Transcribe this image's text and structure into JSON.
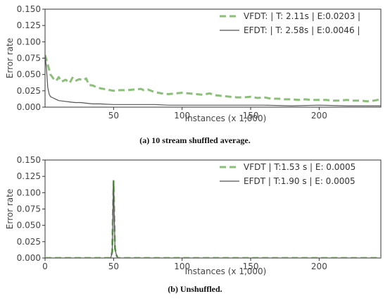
{
  "chart_data": [
    {
      "type": "line",
      "caption": "(a)  10 stream shuffled average.",
      "xlabel": "Instances (x 1,000)",
      "ylabel": "Error rate",
      "xlim": [
        0,
        245
      ],
      "ylim": [
        0,
        0.15
      ],
      "xticks": [
        50,
        100,
        150,
        200
      ],
      "xtick_labels": [
        "50",
        "100",
        "150",
        "200"
      ],
      "yticks": [
        0,
        0.025,
        0.05,
        0.075,
        0.1,
        0.125,
        0.15
      ],
      "ytick_labels": [
        "0.000",
        "0.025",
        "0.050",
        "0.075",
        "0.100",
        "0.125",
        "0.150"
      ],
      "legend_position": "top-right",
      "series": [
        {
          "name": "VFDT: | T: 2.11s |  E:0.0203 |",
          "style": "dashed",
          "color": "#8cc07a",
          "x": [
            0,
            2,
            4,
            6,
            8,
            10,
            12,
            15,
            18,
            20,
            22,
            25,
            28,
            30,
            32,
            35,
            38,
            40,
            45,
            50,
            55,
            60,
            65,
            70,
            72,
            75,
            80,
            85,
            90,
            95,
            100,
            105,
            110,
            115,
            120,
            125,
            130,
            135,
            140,
            145,
            150,
            155,
            160,
            165,
            170,
            175,
            180,
            185,
            190,
            195,
            200,
            205,
            210,
            215,
            220,
            225,
            230,
            235,
            240,
            245
          ],
          "y": [
            0.08,
            0.065,
            0.05,
            0.044,
            0.04,
            0.046,
            0.039,
            0.042,
            0.037,
            0.045,
            0.04,
            0.043,
            0.041,
            0.044,
            0.034,
            0.033,
            0.03,
            0.029,
            0.027,
            0.025,
            0.026,
            0.026,
            0.027,
            0.028,
            0.026,
            0.027,
            0.023,
            0.021,
            0.02,
            0.021,
            0.022,
            0.021,
            0.02,
            0.019,
            0.021,
            0.018,
            0.017,
            0.016,
            0.015,
            0.015,
            0.016,
            0.014,
            0.015,
            0.013,
            0.013,
            0.012,
            0.012,
            0.011,
            0.012,
            0.011,
            0.011,
            0.011,
            0.01,
            0.01,
            0.011,
            0.01,
            0.01,
            0.009,
            0.01,
            0.012
          ]
        },
        {
          "name": "EFDT: | T: 2.58s |  E:0.0046 |",
          "style": "solid",
          "color": "#555555",
          "x": [
            0,
            1,
            2,
            3,
            4,
            6,
            8,
            10,
            14,
            18,
            22,
            26,
            30,
            35,
            40,
            50,
            60,
            70,
            80,
            90,
            100,
            120,
            140,
            160,
            180,
            200,
            220,
            245
          ],
          "y": [
            0.08,
            0.06,
            0.03,
            0.02,
            0.016,
            0.014,
            0.012,
            0.01,
            0.009,
            0.008,
            0.007,
            0.007,
            0.006,
            0.005,
            0.005,
            0.004,
            0.004,
            0.004,
            0.004,
            0.003,
            0.003,
            0.003,
            0.003,
            0.003,
            0.002,
            0.003,
            0.002,
            0.002
          ]
        }
      ]
    },
    {
      "type": "line",
      "caption": "(b) Unshuffled.",
      "xlabel": "Instances (x 1,000)",
      "ylabel": "Error rate",
      "xlim": [
        0,
        245
      ],
      "ylim": [
        0,
        0.15
      ],
      "xticks": [
        0,
        50,
        100,
        150,
        200
      ],
      "xtick_labels": [
        "0",
        "50",
        "100",
        "150",
        "200"
      ],
      "yticks": [
        0,
        0.025,
        0.05,
        0.075,
        0.1,
        0.125,
        0.15
      ],
      "ytick_labels": [
        "0.000",
        "0.025",
        "0.050",
        "0.075",
        "0.100",
        "0.125",
        "0.150"
      ],
      "legend_position": "top-right",
      "series": [
        {
          "name": "VFDT | T:1.53 s | E: 0.0005",
          "style": "dashed",
          "color": "#8cc07a",
          "x": [
            0,
            48,
            49,
            50,
            51,
            52,
            53,
            245
          ],
          "y": [
            0,
            0,
            0.01,
            0.118,
            0.015,
            0.005,
            0,
            0
          ]
        },
        {
          "name": "EFDT | T:1.90 s | E: 0.0005",
          "style": "solid",
          "color": "#555555",
          "x": [
            0,
            48,
            49,
            50,
            51,
            52,
            53,
            245
          ],
          "y": [
            0,
            0,
            0.01,
            0.118,
            0.015,
            0.005,
            0,
            0
          ]
        }
      ]
    }
  ]
}
